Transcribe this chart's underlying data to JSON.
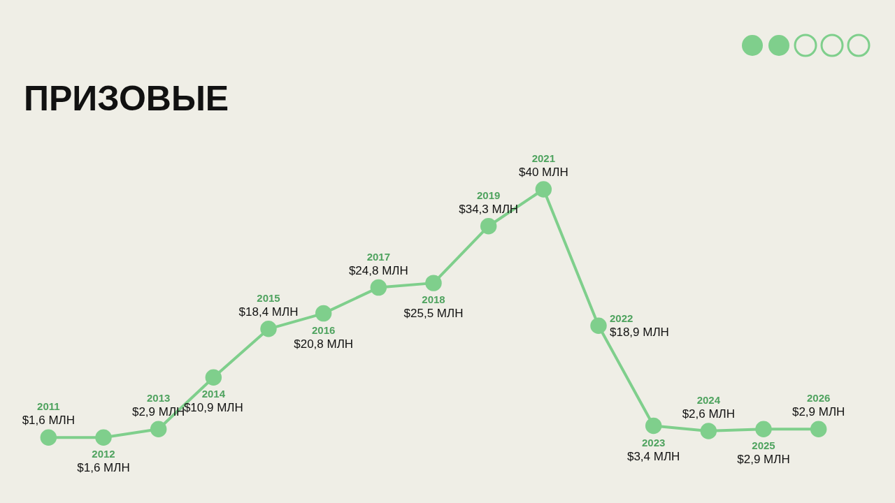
{
  "chart_data": {
    "type": "line",
    "title": "ПРИЗОВЫЕ",
    "categories": [
      "2011",
      "2012",
      "2013",
      "2014",
      "2015",
      "2016",
      "2017",
      "2018",
      "2019",
      "2021",
      "2022",
      "2023",
      "2024",
      "2025",
      "2026"
    ],
    "series": [
      {
        "color": "#7fcf8c",
        "values": [
          1.6,
          1.6,
          2.9,
          10.9,
          18.4,
          20.8,
          24.8,
          25.5,
          34.3,
          40,
          18.9,
          3.4,
          2.6,
          2.9,
          2.9
        ],
        "value_labels": [
          "$1,6 МЛН",
          "$1,6 МЛН",
          "$2,9 МЛН",
          "$10,9 МЛН",
          "$18,4 МЛН",
          "$20,8 МЛН",
          "$24,8 МЛН",
          "$25,5 МЛН",
          "$34,3 МЛН",
          "$40 МЛН",
          "$18,9 МЛН",
          "$3,4 МЛН",
          "$2,6 МЛН",
          "$2,9 МЛН",
          "$2,9 МЛН"
        ]
      }
    ],
    "marker": "circle",
    "legend": false,
    "grid": false
  }
}
